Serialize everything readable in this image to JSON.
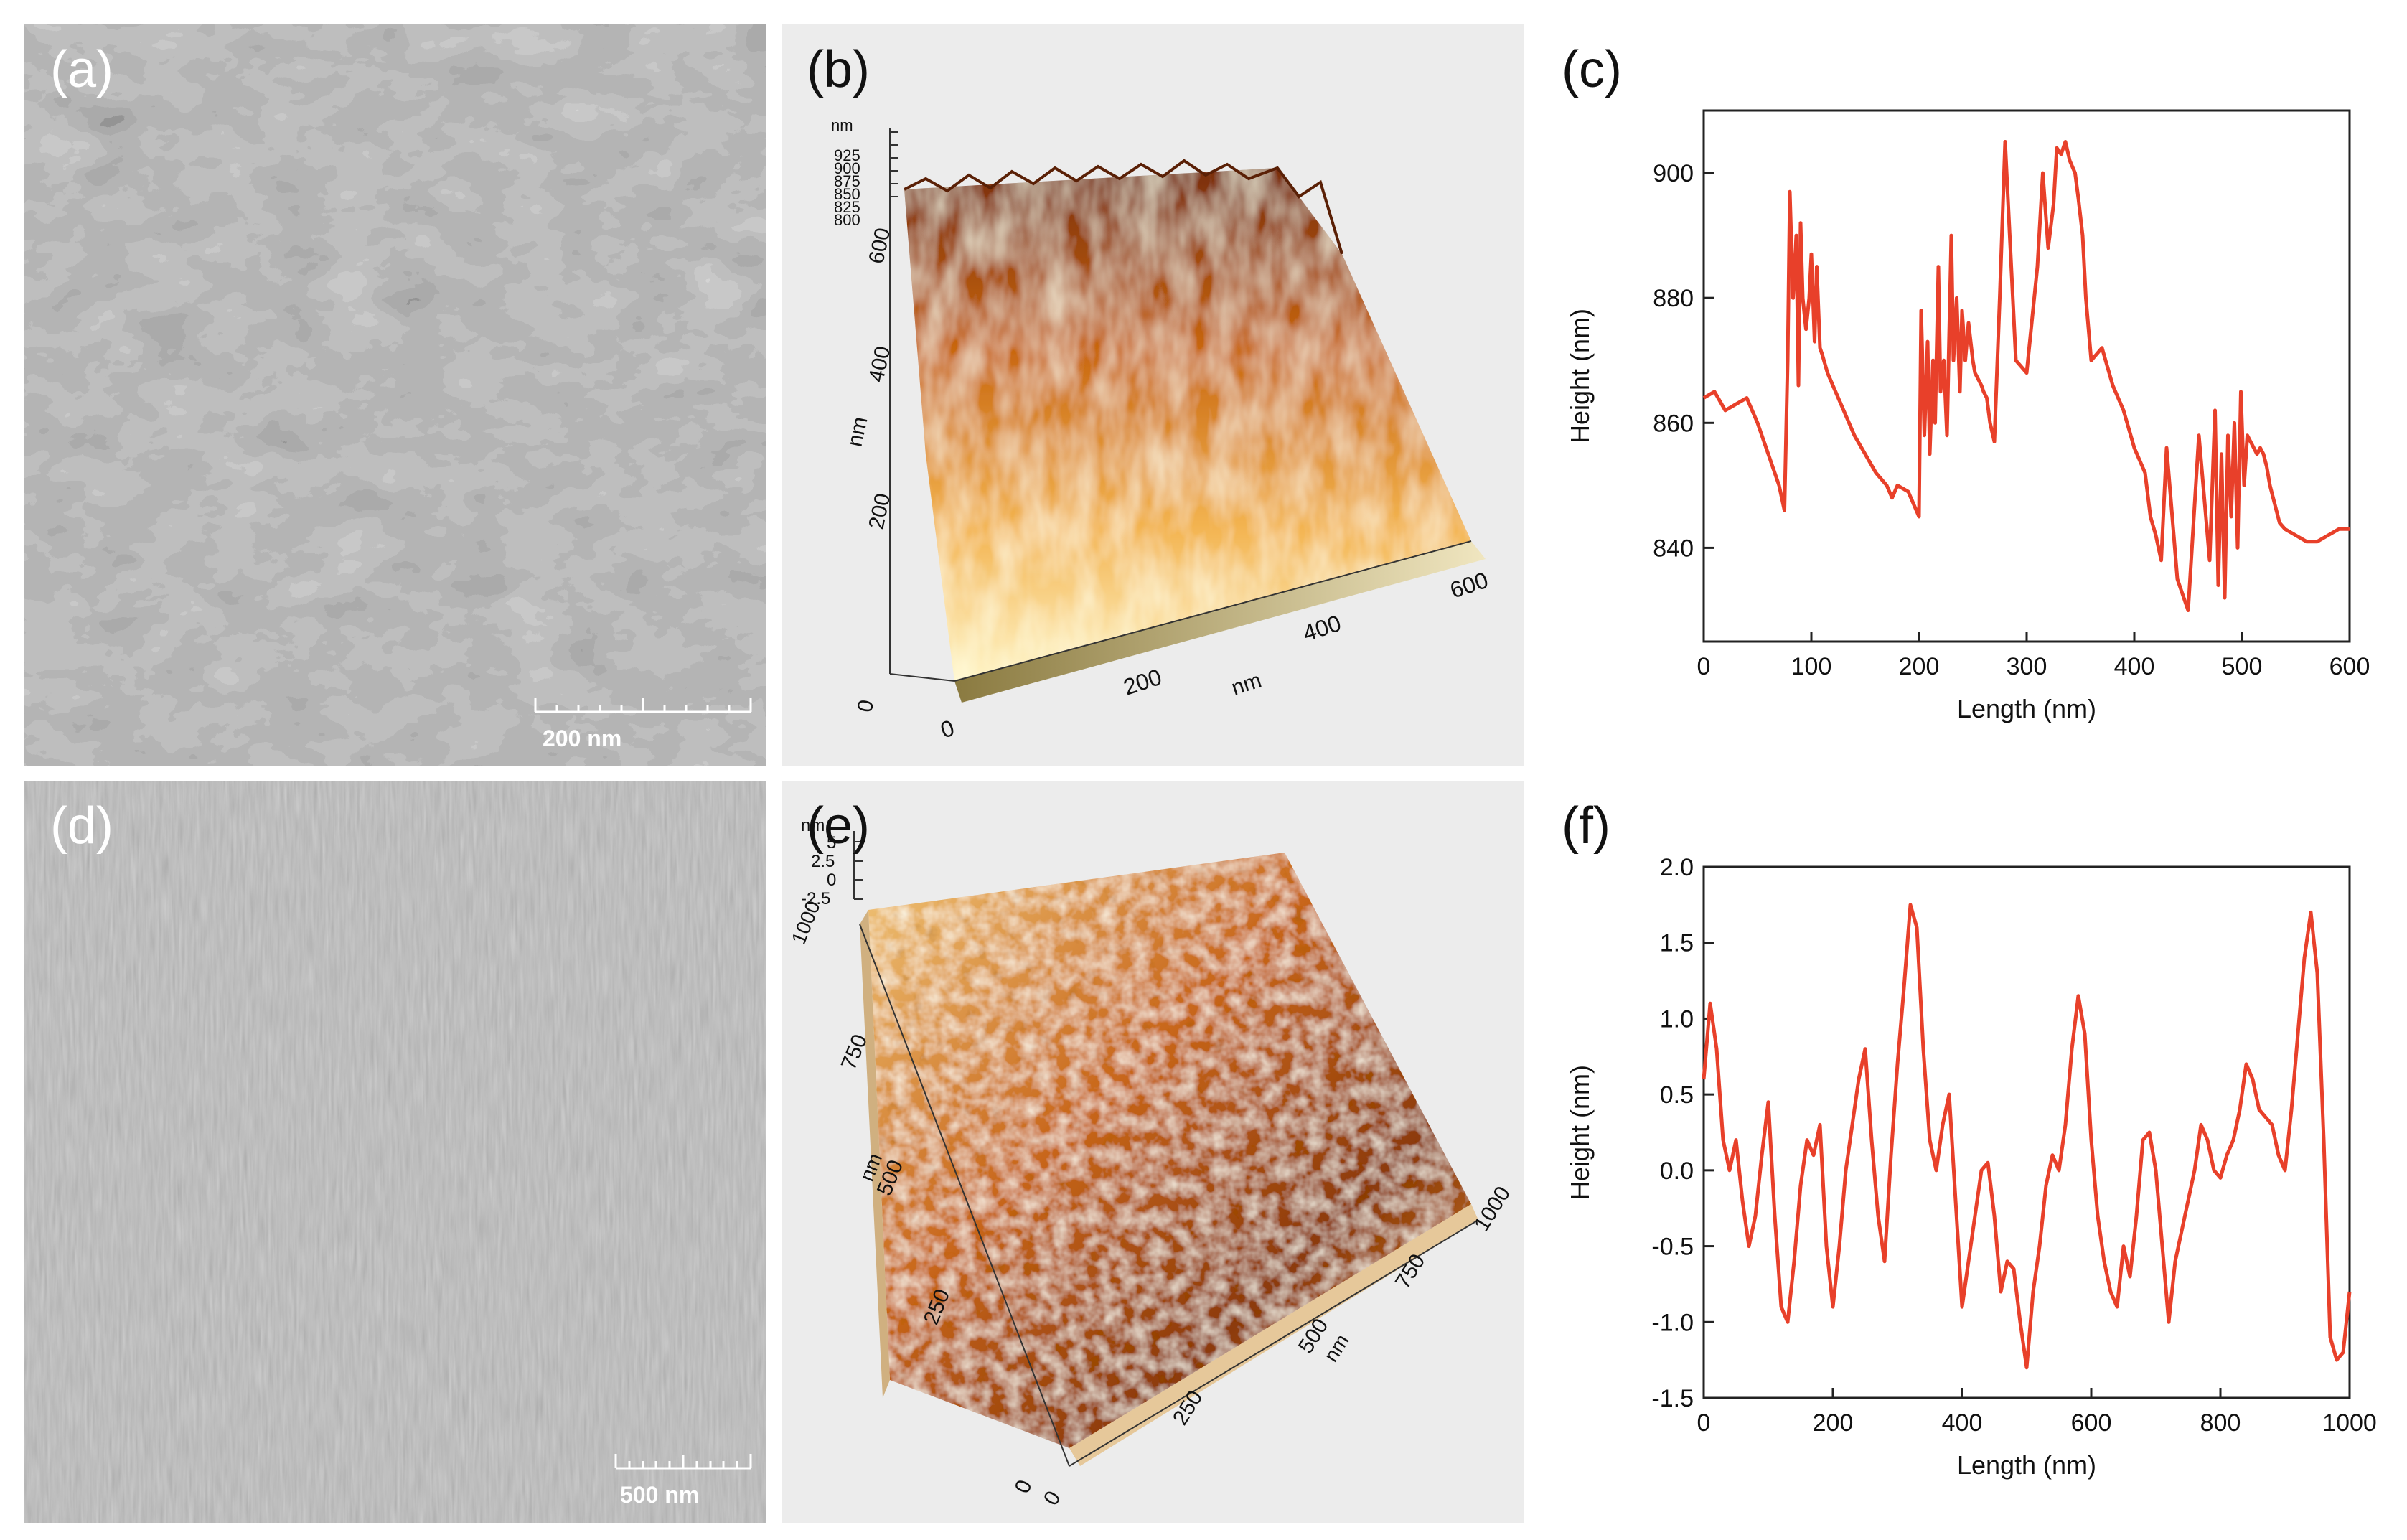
{
  "panels": {
    "a": {
      "label": "(a)",
      "scale_bar": "200 nm"
    },
    "b": {
      "label": "(b)",
      "z_unit": "nm",
      "z_ticks": [
        "925",
        "900",
        "875",
        "850",
        "825",
        "800"
      ],
      "y_unit": "nm",
      "y_ticks": [
        "600",
        "400",
        "200",
        "0"
      ],
      "x_unit": "nm",
      "x_ticks": [
        "0",
        "200",
        "400",
        "600"
      ]
    },
    "c": {
      "label": "(c)"
    },
    "d": {
      "label": "(d)",
      "scale_bar": "500 nm"
    },
    "e": {
      "label": "(e)",
      "z_unit": "nm",
      "z_ticks": [
        "5",
        "2.5",
        "0",
        "-2.5"
      ],
      "y_unit": "nm",
      "y_ticks": [
        "1000",
        "750",
        "500",
        "250",
        "0"
      ],
      "x_unit": "nm",
      "x_ticks": [
        "0",
        "250",
        "500",
        "750",
        "1000"
      ]
    },
    "f": {
      "label": "(f)"
    }
  },
  "chart_data": [
    {
      "type": "line",
      "panel": "c",
      "xlabel": "Length (nm)",
      "ylabel": "Height (nm)",
      "xlim": [
        0,
        600
      ],
      "ylim": [
        825,
        910
      ],
      "xticks": [
        0,
        100,
        200,
        300,
        400,
        500,
        600
      ],
      "yticks": [
        840,
        860,
        880,
        900
      ],
      "color": "#e8402a",
      "series": [
        {
          "x": [
            0,
            10,
            20,
            30,
            40,
            50,
            60,
            70,
            75,
            78,
            80,
            83,
            86,
            88,
            90,
            92,
            95,
            98,
            100,
            103,
            105,
            108,
            110,
            115,
            120,
            130,
            140,
            150,
            160,
            170,
            175,
            180,
            190,
            200,
            202,
            205,
            208,
            210,
            213,
            215,
            218,
            220,
            223,
            226,
            230,
            232,
            235,
            238,
            240,
            243,
            246,
            250,
            252,
            255,
            258,
            260,
            263,
            266,
            270,
            275,
            280,
            290,
            300,
            310,
            315,
            320,
            325,
            328,
            332,
            336,
            340,
            345,
            348,
            352,
            355,
            360,
            370,
            380,
            390,
            400,
            410,
            415,
            420,
            425,
            430,
            440,
            450,
            460,
            470,
            475,
            478,
            481,
            484,
            487,
            490,
            493,
            496,
            499,
            502,
            505,
            508,
            511,
            514,
            517,
            520,
            523,
            526,
            529,
            532,
            535,
            540,
            550,
            560,
            570,
            580,
            590,
            600
          ],
          "y": [
            864,
            865,
            862,
            863,
            864,
            860,
            855,
            850,
            846,
            870,
            897,
            880,
            890,
            866,
            892,
            880,
            875,
            880,
            887,
            873,
            885,
            872,
            871,
            868,
            866,
            862,
            858,
            855,
            852,
            850,
            848,
            850,
            849,
            845,
            878,
            858,
            873,
            855,
            870,
            860,
            885,
            865,
            870,
            858,
            890,
            870,
            880,
            865,
            878,
            870,
            876,
            870,
            868,
            867,
            866,
            865,
            864,
            860,
            857,
            880,
            905,
            870,
            868,
            885,
            900,
            888,
            895,
            904,
            903,
            905,
            902,
            900,
            896,
            890,
            880,
            870,
            872,
            866,
            862,
            856,
            852,
            845,
            842,
            838,
            856,
            835,
            830,
            858,
            838,
            862,
            834,
            855,
            832,
            858,
            845,
            860,
            840,
            865,
            850,
            858,
            857,
            856,
            855,
            856,
            855,
            853,
            850,
            848,
            846,
            844,
            843,
            842,
            841,
            841,
            842,
            843,
            843
          ]
        }
      ]
    },
    {
      "type": "line",
      "panel": "f",
      "xlabel": "Length (nm)",
      "ylabel": "Height (nm)",
      "xlim": [
        0,
        1000
      ],
      "ylim": [
        -1.5,
        2.0
      ],
      "xticks": [
        0,
        200,
        400,
        600,
        800,
        1000
      ],
      "yticks": [
        -1.5,
        -1.0,
        -0.5,
        0.0,
        0.5,
        1.0,
        1.5,
        2.0
      ],
      "color": "#e8402a",
      "series": [
        {
          "x": [
            0,
            10,
            20,
            30,
            40,
            50,
            60,
            70,
            80,
            90,
            100,
            110,
            120,
            130,
            140,
            150,
            160,
            170,
            180,
            190,
            200,
            210,
            220,
            230,
            240,
            250,
            260,
            270,
            280,
            290,
            300,
            310,
            320,
            330,
            340,
            350,
            360,
            370,
            380,
            390,
            400,
            410,
            420,
            430,
            440,
            450,
            460,
            470,
            480,
            490,
            500,
            510,
            520,
            530,
            540,
            550,
            560,
            570,
            580,
            590,
            600,
            610,
            620,
            630,
            640,
            650,
            660,
            670,
            680,
            690,
            700,
            710,
            720,
            730,
            740,
            750,
            760,
            770,
            780,
            790,
            800,
            810,
            820,
            830,
            840,
            850,
            860,
            870,
            880,
            890,
            900,
            910,
            920,
            930,
            940,
            950,
            960,
            970,
            980,
            990,
            1000
          ],
          "y": [
            0.6,
            1.1,
            0.8,
            0.2,
            0.0,
            0.2,
            -0.2,
            -0.5,
            -0.3,
            0.1,
            0.45,
            -0.3,
            -0.9,
            -1.0,
            -0.6,
            -0.1,
            0.2,
            0.1,
            0.3,
            -0.5,
            -0.9,
            -0.5,
            0.0,
            0.3,
            0.6,
            0.8,
            0.2,
            -0.3,
            -0.6,
            0.1,
            0.7,
            1.2,
            1.75,
            1.6,
            0.8,
            0.2,
            0.0,
            0.3,
            0.5,
            -0.2,
            -0.9,
            -0.6,
            -0.3,
            0.0,
            0.05,
            -0.3,
            -0.8,
            -0.6,
            -0.65,
            -1.0,
            -1.3,
            -0.8,
            -0.5,
            -0.1,
            0.1,
            0.0,
            0.3,
            0.8,
            1.15,
            0.9,
            0.2,
            -0.3,
            -0.6,
            -0.8,
            -0.9,
            -0.5,
            -0.7,
            -0.3,
            0.2,
            0.25,
            0.0,
            -0.5,
            -1.0,
            -0.6,
            -0.4,
            -0.2,
            0.0,
            0.3,
            0.2,
            0.0,
            -0.05,
            0.1,
            0.2,
            0.4,
            0.7,
            0.6,
            0.4,
            0.35,
            0.3,
            0.1,
            0.0,
            0.4,
            0.9,
            1.4,
            1.7,
            1.3,
            0.2,
            -1.1,
            -1.25,
            -1.2,
            -0.8
          ]
        }
      ]
    }
  ]
}
